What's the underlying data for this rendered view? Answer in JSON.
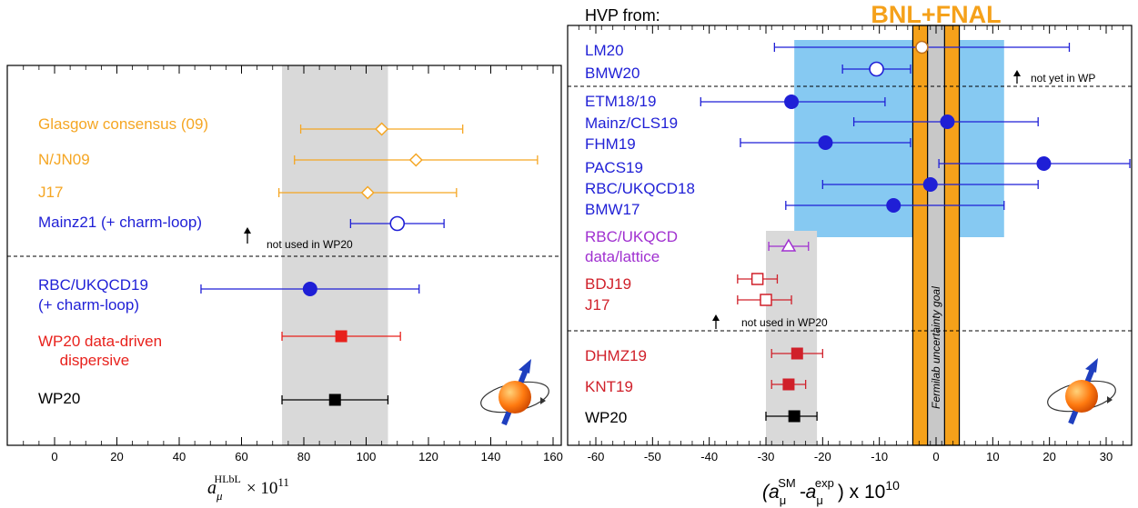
{
  "colors": {
    "orange": "#f5a623",
    "blue": "#1f1fd6",
    "red": "#e8211c",
    "darkred": "#d0202a",
    "purple": "#a030d0",
    "black": "#000000",
    "grey_band": "#d9d9d9",
    "light_blue_band": "#86c9f2",
    "bnl_orange": "#f5a11a"
  },
  "chart_data": [
    {
      "type": "scatter",
      "orientation": "horizontal-error-bars",
      "title": "",
      "xlabel": "a_μ^{HLbL} × 10^{11}",
      "xlabel_parts": {
        "base": "a",
        "sub": "μ",
        "sup": "HLbL",
        "suffix": "× 10",
        "exp": "11"
      },
      "xlim": [
        -10,
        160
      ],
      "xticks": [
        0,
        20,
        40,
        60,
        80,
        100,
        120,
        140,
        160
      ],
      "band": {
        "lo": 73,
        "hi": 107,
        "color": "#d9d9d9"
      },
      "divider_annotation": "not used in WP20",
      "entries": [
        {
          "name": "Glasgow consensus (09)",
          "label_lines": [
            "Glasgow consensus (09)"
          ],
          "value": 105,
          "lo": 79,
          "hi": 131,
          "marker": "open-diamond",
          "color": "#f5a623"
        },
        {
          "name": "N/JN09",
          "label_lines": [
            "N/JN09"
          ],
          "value": 116,
          "lo": 77,
          "hi": 155,
          "marker": "open-diamond",
          "color": "#f5a623"
        },
        {
          "name": "J17",
          "label_lines": [
            "J17"
          ],
          "value": 100.5,
          "lo": 72,
          "hi": 129,
          "marker": "open-diamond",
          "color": "#f5a623"
        },
        {
          "name": "Mainz21 (+ charm-loop)",
          "label_lines": [
            "Mainz21 (+ charm-loop)"
          ],
          "value": 110,
          "lo": 95,
          "hi": 125,
          "marker": "open-circle",
          "color": "#1f1fd6"
        },
        {
          "name": "RBC/UKQCD19",
          "label_lines": [
            "RBC/UKQCD19",
            "(+ charm-loop)"
          ],
          "value": 82,
          "lo": 47,
          "hi": 117,
          "marker": "filled-circle",
          "color": "#1f1fd6"
        },
        {
          "name": "WP20 data-driven dispersive",
          "label_lines": [
            "WP20 data-driven",
            "     dispersive"
          ],
          "value": 92,
          "lo": 73,
          "hi": 111,
          "marker": "filled-square",
          "color": "#e8211c"
        },
        {
          "name": "WP20",
          "label_lines": [
            "WP20"
          ],
          "value": 90,
          "lo": 73,
          "hi": 107,
          "marker": "filled-square",
          "color": "#000000"
        }
      ]
    },
    {
      "type": "scatter",
      "orientation": "horizontal-error-bars",
      "title": "HVP from:",
      "xlabel": "(a_μ^SM - a_μ^exp) x 10^10",
      "xlabel_parts": {
        "open": "(a",
        "sub1": "μ",
        "sup1": "SM",
        "mid": "-a",
        "sub2": "μ",
        "sup2": "exp",
        "close": ") x 10",
        "exp": "10"
      },
      "xlim": [
        -65,
        35
      ],
      "xticks": [
        -60,
        -50,
        -40,
        -30,
        -20,
        -10,
        0,
        10,
        20,
        30
      ],
      "band_grey": {
        "lo": -30,
        "hi": -21,
        "color": "#d9d9d9"
      },
      "band_blue": {
        "lo": -25,
        "hi": 12,
        "color": "#86c9f2"
      },
      "bnl_fnal": {
        "label": "BNL+FNAL",
        "center": 0,
        "half_width": 4.1,
        "color": "#f5a11a"
      },
      "fermilab_goal": {
        "label": "Fermilab uncertainty goal",
        "lo": -1.5,
        "hi": 1.5
      },
      "top_annotation": "not yet in WP",
      "divider_annotation": "not used in WP20",
      "entries": [
        {
          "name": "LM20",
          "label_lines": [
            "LM20"
          ],
          "value": -2.5,
          "lo": -28.5,
          "hi": 23.5,
          "marker": "open-circle-orange-fill",
          "color": "#1f1fd6"
        },
        {
          "name": "BMW20",
          "label_lines": [
            "BMW20"
          ],
          "value": -10.5,
          "lo": -16.5,
          "hi": -4.5,
          "marker": "open-circle",
          "color": "#1f1fd6"
        },
        {
          "name": "ETM18/19",
          "label_lines": [
            "ETM18/19"
          ],
          "value": -25.5,
          "lo": -41.5,
          "hi": -9,
          "marker": "filled-circle",
          "color": "#1f1fd6"
        },
        {
          "name": "Mainz/CLS19",
          "label_lines": [
            "Mainz/CLS19"
          ],
          "value": 2,
          "lo": -14.5,
          "hi": 18,
          "marker": "filled-circle",
          "color": "#1f1fd6"
        },
        {
          "name": "FHM19",
          "label_lines": [
            "FHM19"
          ],
          "value": -19.5,
          "lo": -34.5,
          "hi": -4.5,
          "marker": "filled-circle",
          "color": "#1f1fd6"
        },
        {
          "name": "PACS19",
          "label_lines": [
            "PACS19"
          ],
          "value": 19,
          "lo": 0.5,
          "hi": 37,
          "marker": "filled-circle",
          "color": "#1f1fd6"
        },
        {
          "name": "RBC/UKQCD18",
          "label_lines": [
            "RBC/UKQCD18"
          ],
          "value": -1,
          "lo": -20,
          "hi": 18,
          "marker": "filled-circle",
          "color": "#1f1fd6"
        },
        {
          "name": "BMW17",
          "label_lines": [
            "BMW17"
          ],
          "value": -7.5,
          "lo": -26.5,
          "hi": 12,
          "marker": "filled-circle",
          "color": "#1f1fd6"
        },
        {
          "name": "RBC/UKQCD data/lattice",
          "label_lines": [
            "RBC/UKQCD",
            "data/lattice"
          ],
          "value": -26,
          "lo": -29.5,
          "hi": -22.5,
          "marker": "open-triangle",
          "color": "#a030d0"
        },
        {
          "name": "BDJ19",
          "label_lines": [
            "BDJ19"
          ],
          "value": -31.5,
          "lo": -35,
          "hi": -28,
          "marker": "open-square",
          "color": "#d0202a"
        },
        {
          "name": "J17",
          "label_lines": [
            "J17"
          ],
          "value": -30,
          "lo": -35,
          "hi": -25.5,
          "marker": "open-square",
          "color": "#d0202a"
        },
        {
          "name": "DHMZ19",
          "label_lines": [
            "DHMZ19"
          ],
          "value": -24.5,
          "lo": -29,
          "hi": -20,
          "marker": "filled-square",
          "color": "#d0202a"
        },
        {
          "name": "KNT19",
          "label_lines": [
            "KNT19"
          ],
          "value": -26,
          "lo": -29,
          "hi": -23,
          "marker": "filled-square",
          "color": "#d0202a"
        },
        {
          "name": "WP20",
          "label_lines": [
            "WP20"
          ],
          "value": -25,
          "lo": -30,
          "hi": -21,
          "marker": "filled-square",
          "color": "#000000"
        }
      ]
    }
  ]
}
